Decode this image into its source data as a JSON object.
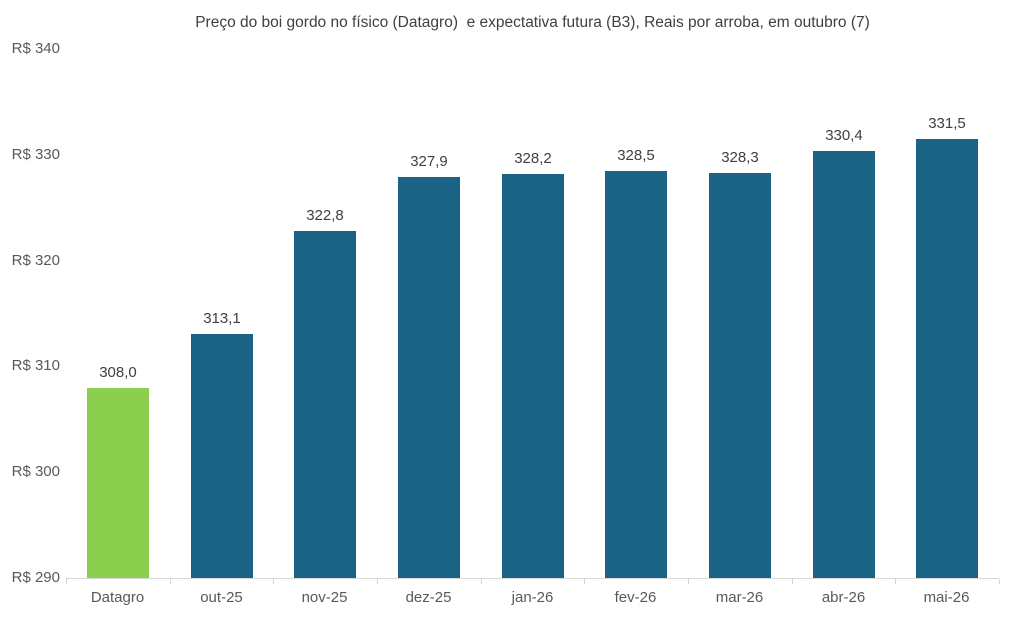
{
  "chart_data": {
    "type": "bar",
    "title": "Preço do boi gordo no físico (Datagro)  e expectativa futura (B3), Reais por arroba, em outubro (7)",
    "categories": [
      "Datagro",
      "out-25",
      "nov-25",
      "dez-25",
      "jan-26",
      "fev-26",
      "mar-26",
      "abr-26",
      "mai-26"
    ],
    "values": [
      308.0,
      313.1,
      322.8,
      327.9,
      328.2,
      328.5,
      328.3,
      330.4,
      331.5
    ],
    "value_labels": [
      "308,0",
      "313,1",
      "322,8",
      "327,9",
      "328,2",
      "328,5",
      "328,3",
      "330,4",
      "331,5"
    ],
    "point_colors": [
      "#8CCE4E",
      "#1A6384",
      "#1A6384",
      "#1A6384",
      "#1A6384",
      "#1A6384",
      "#1A6384",
      "#1A6384",
      "#1A6384"
    ],
    "xlabel": "",
    "ylabel": "",
    "ylim": [
      290,
      340
    ],
    "ytick_step": 10,
    "ytick_labels": [
      "R$ 290",
      "R$ 300",
      "R$ 310",
      "R$ 320",
      "R$ 330",
      "R$ 340"
    ],
    "grid": false,
    "legend_position": "none",
    "axis_color": "#D6D6D6",
    "title_color": "#3F3F3F",
    "tick_label_color": "#595959",
    "value_label_color": "#404040"
  }
}
